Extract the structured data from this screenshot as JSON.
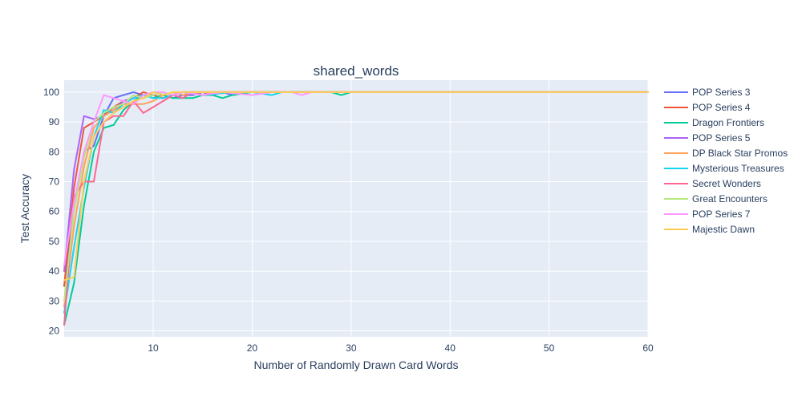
{
  "chart_data": {
    "type": "line",
    "title": "shared_words",
    "xlabel": "Number of Randomly Drawn Card Words",
    "ylabel": "Test Accuracy",
    "xlim": [
      1,
      60
    ],
    "ylim": [
      18,
      104
    ],
    "xticks": [
      10,
      20,
      30,
      40,
      50,
      60
    ],
    "yticks": [
      20,
      30,
      40,
      50,
      60,
      70,
      80,
      90,
      100
    ],
    "grid": true,
    "legend_position": "right",
    "series": [
      {
        "name": "POP Series 3",
        "color": "#636efa",
        "points": [
          [
            1,
            35
          ],
          [
            2,
            60
          ],
          [
            3,
            80
          ],
          [
            4,
            82
          ],
          [
            5,
            92
          ],
          [
            6,
            98
          ],
          [
            7,
            99
          ],
          [
            8,
            100
          ],
          [
            9,
            99
          ],
          [
            10,
            98
          ],
          [
            11,
            99
          ],
          [
            12,
            98
          ],
          [
            13,
            99
          ],
          [
            14,
            99
          ],
          [
            15,
            100
          ],
          [
            16,
            99
          ],
          [
            17,
            100
          ],
          [
            18,
            99
          ],
          [
            19,
            100
          ],
          [
            20,
            100
          ],
          [
            22,
            100
          ],
          [
            25,
            100
          ],
          [
            30,
            100
          ],
          [
            40,
            100
          ],
          [
            50,
            100
          ],
          [
            60,
            100
          ]
        ]
      },
      {
        "name": "POP Series 4",
        "color": "#ef553b",
        "points": [
          [
            1,
            35
          ],
          [
            2,
            68
          ],
          [
            3,
            88
          ],
          [
            4,
            90
          ],
          [
            5,
            92
          ],
          [
            6,
            95
          ],
          [
            7,
            97
          ],
          [
            8,
            98
          ],
          [
            9,
            100
          ],
          [
            10,
            99
          ],
          [
            11,
            98
          ],
          [
            12,
            99
          ],
          [
            13,
            100
          ],
          [
            14,
            100
          ],
          [
            15,
            100
          ],
          [
            17,
            100
          ],
          [
            20,
            100
          ],
          [
            25,
            100
          ],
          [
            30,
            100
          ],
          [
            40,
            100
          ],
          [
            50,
            100
          ],
          [
            60,
            100
          ]
        ]
      },
      {
        "name": "Dragon Frontiers",
        "color": "#00cc96",
        "points": [
          [
            1,
            22
          ],
          [
            2,
            36
          ],
          [
            3,
            62
          ],
          [
            4,
            80
          ],
          [
            5,
            88
          ],
          [
            6,
            89
          ],
          [
            7,
            94
          ],
          [
            8,
            97
          ],
          [
            9,
            99
          ],
          [
            10,
            98
          ],
          [
            11,
            99
          ],
          [
            12,
            98
          ],
          [
            13,
            98
          ],
          [
            14,
            98
          ],
          [
            15,
            99
          ],
          [
            16,
            99
          ],
          [
            17,
            98
          ],
          [
            18,
            99
          ],
          [
            20,
            100
          ],
          [
            25,
            100
          ],
          [
            28,
            100
          ],
          [
            29,
            99
          ],
          [
            30,
            100
          ],
          [
            40,
            100
          ],
          [
            50,
            100
          ],
          [
            60,
            100
          ]
        ]
      },
      {
        "name": "POP Series 5",
        "color": "#ab63fa",
        "points": [
          [
            1,
            40
          ],
          [
            2,
            74
          ],
          [
            3,
            92
          ],
          [
            4,
            91
          ],
          [
            5,
            92
          ],
          [
            6,
            94
          ],
          [
            7,
            97
          ],
          [
            8,
            98
          ],
          [
            9,
            99
          ],
          [
            10,
            99
          ],
          [
            11,
            100
          ],
          [
            12,
            99
          ],
          [
            13,
            100
          ],
          [
            15,
            100
          ],
          [
            20,
            100
          ],
          [
            25,
            100
          ],
          [
            30,
            100
          ],
          [
            40,
            100
          ],
          [
            50,
            100
          ],
          [
            60,
            100
          ]
        ]
      },
      {
        "name": "DP Black Star Promos",
        "color": "#ffa15a",
        "points": [
          [
            1,
            28
          ],
          [
            2,
            55
          ],
          [
            3,
            75
          ],
          [
            4,
            88
          ],
          [
            5,
            92
          ],
          [
            6,
            94
          ],
          [
            7,
            96
          ],
          [
            8,
            96
          ],
          [
            9,
            96
          ],
          [
            10,
            97
          ],
          [
            11,
            99
          ],
          [
            12,
            100
          ],
          [
            13,
            99
          ],
          [
            14,
            100
          ],
          [
            15,
            100
          ],
          [
            20,
            100
          ],
          [
            25,
            100
          ],
          [
            30,
            100
          ],
          [
            40,
            100
          ],
          [
            50,
            100
          ],
          [
            60,
            100
          ]
        ]
      },
      {
        "name": "Mysterious Treasures",
        "color": "#19d3f3",
        "points": [
          [
            1,
            26
          ],
          [
            2,
            48
          ],
          [
            3,
            68
          ],
          [
            4,
            85
          ],
          [
            5,
            94
          ],
          [
            6,
            93
          ],
          [
            7,
            96
          ],
          [
            8,
            98
          ],
          [
            9,
            99
          ],
          [
            10,
            98
          ],
          [
            11,
            98
          ],
          [
            12,
            99
          ],
          [
            13,
            100
          ],
          [
            15,
            99
          ],
          [
            18,
            100
          ],
          [
            20,
            100
          ],
          [
            22,
            99
          ],
          [
            23,
            100
          ],
          [
            25,
            100
          ],
          [
            30,
            100
          ],
          [
            40,
            100
          ],
          [
            50,
            100
          ],
          [
            60,
            100
          ]
        ]
      },
      {
        "name": "Secret Wonders",
        "color": "#ff6692",
        "points": [
          [
            1,
            22
          ],
          [
            2,
            65
          ],
          [
            3,
            70
          ],
          [
            4,
            70
          ],
          [
            5,
            90
          ],
          [
            6,
            92
          ],
          [
            7,
            92
          ],
          [
            8,
            97
          ],
          [
            9,
            93
          ],
          [
            10,
            95
          ],
          [
            11,
            97
          ],
          [
            12,
            99
          ],
          [
            13,
            98
          ],
          [
            14,
            100
          ],
          [
            15,
            99
          ],
          [
            16,
            100
          ],
          [
            20,
            100
          ],
          [
            25,
            100
          ],
          [
            30,
            100
          ],
          [
            40,
            100
          ],
          [
            50,
            100
          ],
          [
            60,
            100
          ]
        ]
      },
      {
        "name": "Great Encounters",
        "color": "#b6e880",
        "points": [
          [
            1,
            30
          ],
          [
            2,
            60
          ],
          [
            3,
            78
          ],
          [
            4,
            90
          ],
          [
            5,
            93
          ],
          [
            6,
            95
          ],
          [
            7,
            96
          ],
          [
            8,
            99
          ],
          [
            9,
            98
          ],
          [
            10,
            99
          ],
          [
            11,
            100
          ],
          [
            12,
            99
          ],
          [
            13,
            100
          ],
          [
            15,
            100
          ],
          [
            20,
            100
          ],
          [
            25,
            100
          ],
          [
            30,
            100
          ],
          [
            40,
            100
          ],
          [
            50,
            100
          ],
          [
            60,
            100
          ]
        ]
      },
      {
        "name": "POP Series 7",
        "color": "#ff97ff",
        "points": [
          [
            1,
            42
          ],
          [
            2,
            63
          ],
          [
            3,
            80
          ],
          [
            4,
            90
          ],
          [
            5,
            99
          ],
          [
            6,
            98
          ],
          [
            7,
            97
          ],
          [
            8,
            96
          ],
          [
            9,
            99
          ],
          [
            10,
            100
          ],
          [
            11,
            100
          ],
          [
            12,
            99
          ],
          [
            13,
            100
          ],
          [
            15,
            99
          ],
          [
            17,
            100
          ],
          [
            20,
            99
          ],
          [
            22,
            100
          ],
          [
            24,
            100
          ],
          [
            25,
            99
          ],
          [
            26,
            100
          ],
          [
            30,
            100
          ],
          [
            40,
            100
          ],
          [
            50,
            100
          ],
          [
            60,
            100
          ]
        ]
      },
      {
        "name": "Majestic Dawn",
        "color": "#fecb52",
        "points": [
          [
            1,
            37
          ],
          [
            2,
            38
          ],
          [
            3,
            70
          ],
          [
            4,
            85
          ],
          [
            5,
            90
          ],
          [
            6,
            93
          ],
          [
            7,
            95
          ],
          [
            8,
            97
          ],
          [
            9,
            98
          ],
          [
            10,
            100
          ],
          [
            11,
            99
          ],
          [
            12,
            100
          ],
          [
            13,
            100
          ],
          [
            15,
            100
          ],
          [
            20,
            100
          ],
          [
            25,
            100
          ],
          [
            30,
            100
          ],
          [
            40,
            100
          ],
          [
            50,
            100
          ],
          [
            60,
            100
          ]
        ]
      }
    ]
  }
}
